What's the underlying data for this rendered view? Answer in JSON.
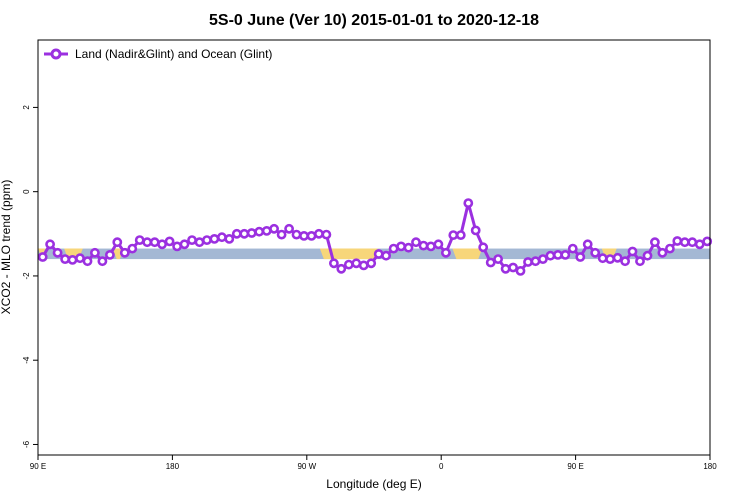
{
  "chart_data": {
    "type": "line",
    "title": "5S-0 June (Ver 10)   2015-01-01 to 2020-12-18",
    "xlabel": "Longitude (deg E)",
    "ylabel": "XCO2 - MLO trend (ppm)",
    "xlim": [
      0,
      360
    ],
    "ylim": [
      -6.25,
      3.6
    ],
    "x_ticks": [
      {
        "pos": 0,
        "label": "90 E"
      },
      {
        "pos": 72,
        "label": "180"
      },
      {
        "pos": 144,
        "label": "90 W"
      },
      {
        "pos": 216,
        "label": "0"
      },
      {
        "pos": 288,
        "label": "90 E"
      },
      {
        "pos": 360,
        "label": "180"
      }
    ],
    "y_ticks": [
      -6,
      -4,
      -2,
      0,
      2
    ],
    "legend": {
      "position": "top-left",
      "entries": [
        "Land (Nadir&Glint) and Ocean (Glint)"
      ]
    },
    "colors": {
      "series": "#9b30e0",
      "ocean_band": "#a4b8d4",
      "land_band": "#f7d67a"
    },
    "band": {
      "y_range": [
        -1.6,
        -1.35
      ],
      "ocean_color": "#a4b8d4",
      "land_color": "#f7d67a",
      "land_segments": [
        [
          0,
          4
        ],
        [
          14,
          24
        ],
        [
          40,
          46
        ],
        [
          151,
          182
        ],
        [
          222,
          238
        ],
        [
          302,
          310
        ]
      ]
    },
    "series": [
      {
        "name": "Land (Nadir&Glint) and Ocean (Glint)",
        "color": "#9b30e0",
        "x": [
          2.5,
          6.5,
          10.5,
          14.5,
          18.5,
          22.5,
          26.5,
          30.5,
          34.5,
          38.5,
          42.5,
          46.5,
          50.5,
          54.5,
          58.5,
          62.5,
          66.5,
          70.5,
          74.5,
          78.5,
          82.5,
          86.5,
          90.5,
          94.5,
          98.5,
          102.5,
          106.5,
          110.5,
          114.5,
          118.5,
          122.5,
          126.5,
          130.5,
          134.5,
          138.5,
          142.5,
          146.5,
          150.5,
          154.5,
          158.5,
          162.5,
          166.5,
          170.5,
          174.5,
          178.5,
          182.5,
          186.5,
          190.5,
          194.5,
          198.5,
          202.5,
          206.5,
          210.5,
          214.5,
          218.5,
          222.5,
          226.5,
          230.5,
          234.5,
          238.5,
          242.5,
          246.5,
          250.5,
          254.5,
          258.5,
          262.5,
          266.5,
          270.5,
          274.5,
          278.5,
          282.5,
          286.5,
          290.5,
          294.5,
          298.5,
          302.5,
          306.5,
          310.5,
          314.5,
          318.5,
          322.5,
          326.5,
          330.5,
          334.5,
          338.5,
          342.5,
          346.5,
          350.5,
          354.5,
          358.5
        ],
        "y": [
          -1.55,
          -1.25,
          -1.45,
          -1.6,
          -1.62,
          -1.58,
          -1.65,
          -1.45,
          -1.65,
          -1.5,
          -1.2,
          -1.45,
          -1.35,
          -1.15,
          -1.2,
          -1.2,
          -1.25,
          -1.18,
          -1.3,
          -1.25,
          -1.15,
          -1.2,
          -1.15,
          -1.12,
          -1.08,
          -1.12,
          -1.0,
          -1.0,
          -0.98,
          -0.95,
          -0.93,
          -0.88,
          -1.02,
          -0.88,
          -1.02,
          -1.05,
          -1.05,
          -1.0,
          -1.02,
          -1.7,
          -1.83,
          -1.73,
          -1.7,
          -1.75,
          -1.7,
          -1.48,
          -1.52,
          -1.35,
          -1.3,
          -1.33,
          -1.2,
          -1.28,
          -1.3,
          -1.25,
          -1.45,
          -1.03,
          -1.03,
          -0.27,
          -0.92,
          -1.32,
          -1.68,
          -1.6,
          -1.83,
          -1.8,
          -1.88,
          -1.67,
          -1.65,
          -1.6,
          -1.52,
          -1.5,
          -1.5,
          -1.35,
          -1.55,
          -1.25,
          -1.45,
          -1.58,
          -1.6,
          -1.57,
          -1.65,
          -1.42,
          -1.65,
          -1.52,
          -1.2,
          -1.45,
          -1.35,
          -1.17,
          -1.2,
          -1.2,
          -1.25,
          -1.18
        ]
      }
    ]
  }
}
